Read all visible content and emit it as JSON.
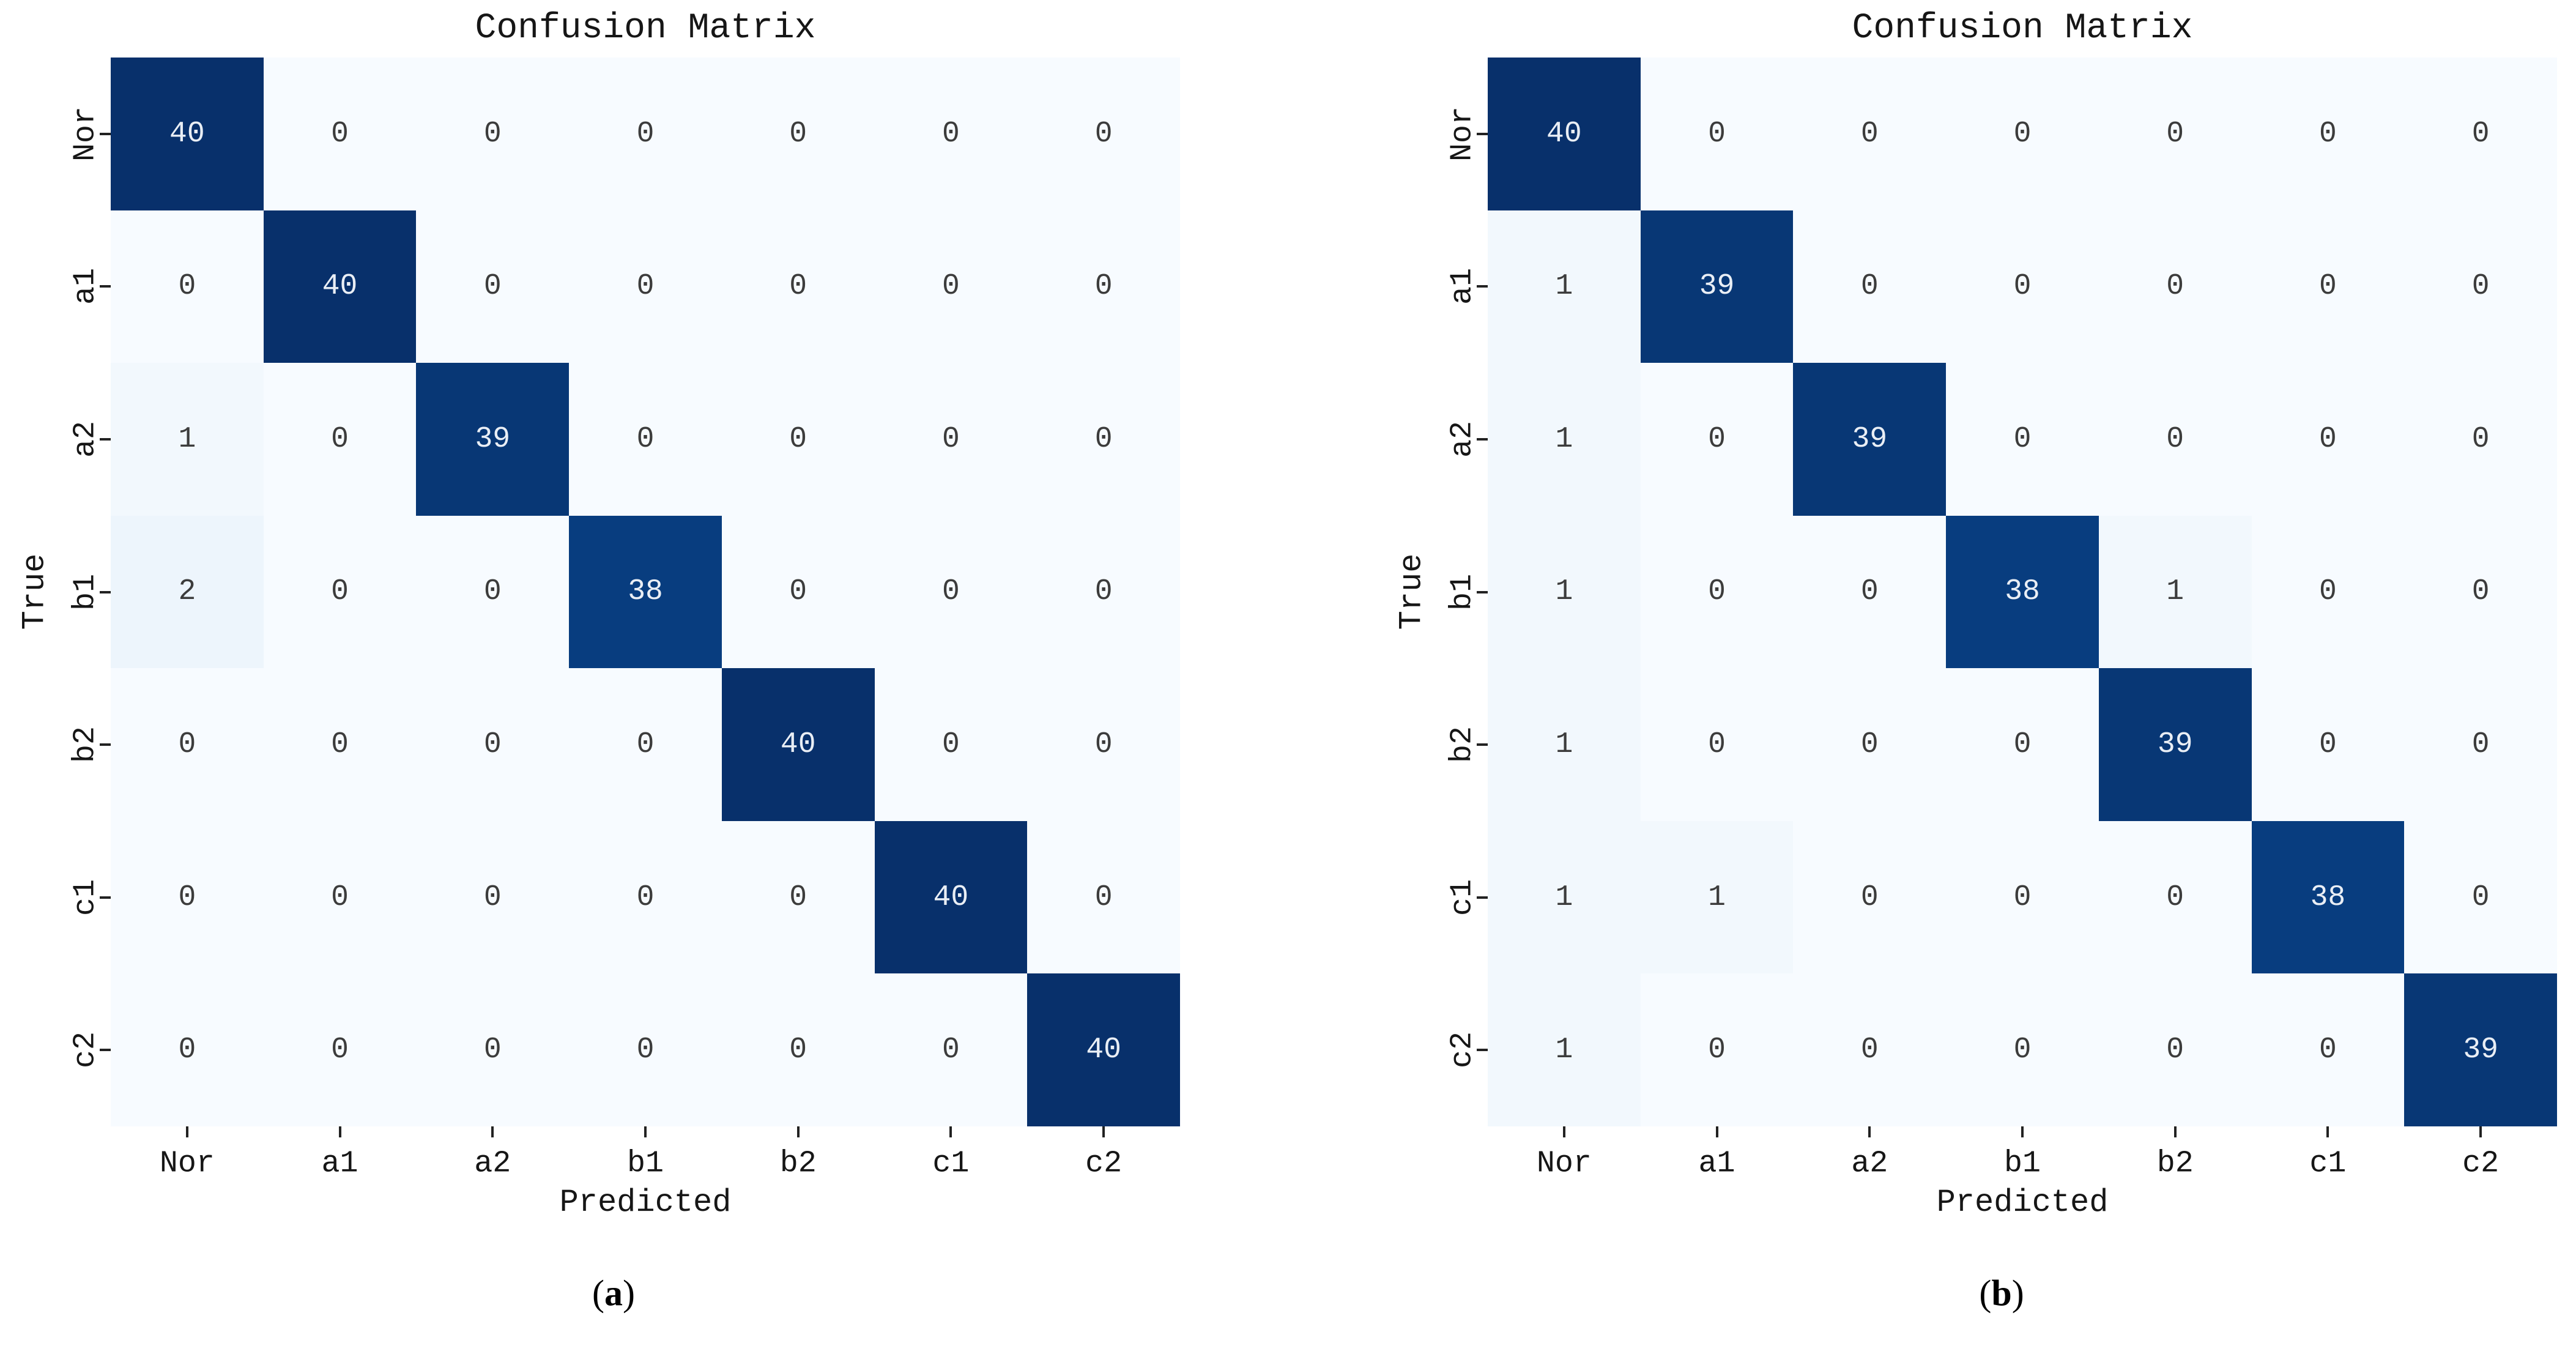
{
  "page": {
    "background": "#ffffff"
  },
  "colors": {
    "cmap_low": "#f7fbff",
    "cmap_high": "#08306b",
    "annot_on_dark": "#e9eef5",
    "annot_on_light": "#3c3c3c",
    "axis_text": "#161616",
    "tick_mark": "#222222"
  },
  "chart_data": [
    {
      "type": "heatmap",
      "panel": "a",
      "title": "Confusion Matrix",
      "xlabel": "Predicted",
      "ylabel": "True",
      "x_ticklabels": [
        "Nor",
        "a1",
        "a2",
        "b1",
        "b2",
        "c1",
        "c2"
      ],
      "y_ticklabels": [
        "Nor",
        "a1",
        "a2",
        "b1",
        "b2",
        "c1",
        "c2"
      ],
      "vmin": 0,
      "vmax": 40,
      "colormap": "Blues",
      "legend": "none",
      "grid": "off",
      "values": [
        [
          40,
          0,
          0,
          0,
          0,
          0,
          0
        ],
        [
          0,
          40,
          0,
          0,
          0,
          0,
          0
        ],
        [
          1,
          0,
          39,
          0,
          0,
          0,
          0
        ],
        [
          2,
          0,
          0,
          38,
          0,
          0,
          0
        ],
        [
          0,
          0,
          0,
          0,
          40,
          0,
          0
        ],
        [
          0,
          0,
          0,
          0,
          0,
          40,
          0
        ],
        [
          0,
          0,
          0,
          0,
          0,
          0,
          40
        ]
      ],
      "caption": {
        "open": "(",
        "letter": "a",
        "close": ")"
      }
    },
    {
      "type": "heatmap",
      "panel": "b",
      "title": "Confusion Matrix",
      "xlabel": "Predicted",
      "ylabel": "True",
      "x_ticklabels": [
        "Nor",
        "a1",
        "a2",
        "b1",
        "b2",
        "c1",
        "c2"
      ],
      "y_ticklabels": [
        "Nor",
        "a1",
        "a2",
        "b1",
        "b2",
        "c1",
        "c2"
      ],
      "vmin": 0,
      "vmax": 40,
      "colormap": "Blues",
      "legend": "none",
      "grid": "off",
      "values": [
        [
          40,
          0,
          0,
          0,
          0,
          0,
          0
        ],
        [
          1,
          39,
          0,
          0,
          0,
          0,
          0
        ],
        [
          1,
          0,
          39,
          0,
          0,
          0,
          0
        ],
        [
          1,
          0,
          0,
          38,
          1,
          0,
          0
        ],
        [
          1,
          0,
          0,
          0,
          39,
          0,
          0
        ],
        [
          1,
          1,
          0,
          0,
          0,
          38,
          0
        ],
        [
          1,
          0,
          0,
          0,
          0,
          0,
          39
        ]
      ],
      "caption": {
        "open": "(",
        "letter": "b",
        "close": ")"
      }
    }
  ]
}
